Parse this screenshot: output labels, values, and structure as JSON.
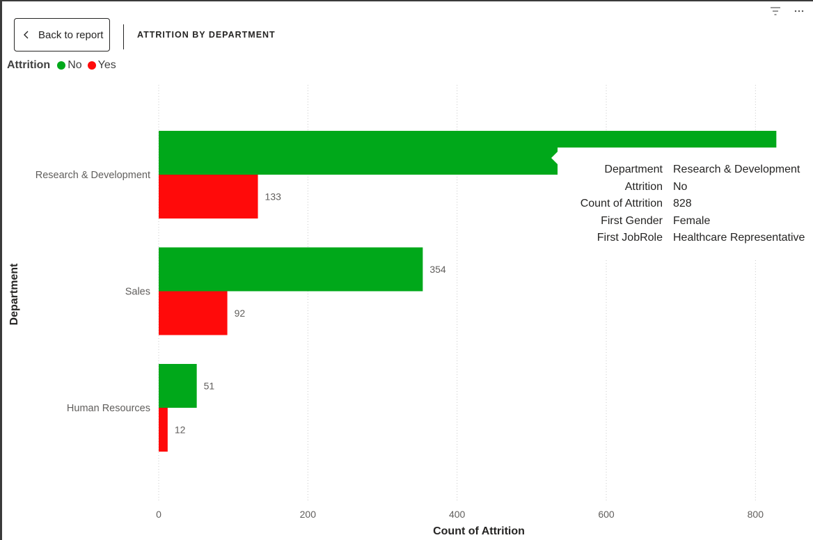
{
  "header": {
    "back_label": "Back to report",
    "page_title": "ATTRITION BY DEPARTMENT"
  },
  "toolbar": {
    "icons": [
      "filter-icon",
      "more-options-icon"
    ]
  },
  "legend": {
    "title": "Attrition",
    "items": [
      {
        "label": "No",
        "color": "#00A81A"
      },
      {
        "label": "Yes",
        "color": "#FF0A0A"
      }
    ]
  },
  "chart_data": {
    "type": "bar",
    "orientation": "horizontal",
    "title": "ATTRITION BY DEPARTMENT",
    "xlabel": "Count of Attrition",
    "ylabel": "Department",
    "categories": [
      "Research & Development",
      "Sales",
      "Human Resources"
    ],
    "series": [
      {
        "name": "No",
        "color": "#00A81A",
        "values": [
          828,
          354,
          51
        ],
        "labels": [
          "",
          "354",
          "51"
        ]
      },
      {
        "name": "Yes",
        "color": "#FF0A0A",
        "values": [
          133,
          92,
          12
        ],
        "labels": [
          "133",
          "92",
          "12"
        ]
      }
    ],
    "xlim": [
      0,
      850
    ],
    "xticks": [
      "0",
      "200",
      "400",
      "600",
      "800"
    ],
    "grid": true,
    "legend_placement": "top-left"
  },
  "tooltip": {
    "rows": [
      {
        "key": "Department",
        "value": "Research & Development"
      },
      {
        "key": "Attrition",
        "value": "No"
      },
      {
        "key": "Count of Attrition",
        "value": "828"
      },
      {
        "key": "First Gender",
        "value": "Female"
      },
      {
        "key": "First JobRole",
        "value": "Healthcare Representative"
      }
    ]
  }
}
